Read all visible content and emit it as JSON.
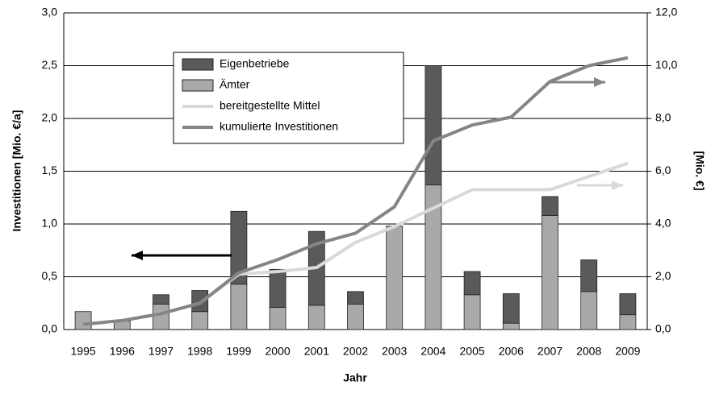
{
  "chart_data": {
    "type": "bar",
    "x_label": "Jahr",
    "y_label": "Investitionen [Mio. €/a]",
    "y2_label": "[Mio. €]",
    "categories": [
      "1995",
      "1996",
      "1997",
      "1998",
      "1999",
      "2000",
      "2001",
      "2002",
      "2003",
      "2004",
      "2005",
      "2006",
      "2007",
      "2008",
      "2009"
    ],
    "series": [
      {
        "name": "Eigenbetriebe",
        "color": "#5a5a5a",
        "kind": "bar",
        "values": [
          0,
          0.01,
          0.09,
          0.2,
          0.69,
          0.36,
          0.7,
          0.12,
          0,
          1.13,
          0.22,
          0.28,
          0.18,
          0.3,
          0.2
        ]
      },
      {
        "name": "Ämter",
        "color": "#a9a9a9",
        "kind": "bar",
        "values": [
          0.17,
          0.08,
          0.24,
          0.17,
          0.43,
          0.21,
          0.23,
          0.24,
          0.98,
          1.37,
          0.33,
          0.06,
          1.08,
          0.36,
          0.14
        ]
      },
      {
        "name": "bereitgestellte Mittel",
        "color": "#d9d9d9",
        "kind": "line",
        "axis": "y2",
        "values": [
          0.2,
          0.34,
          0.6,
          1.0,
          2.1,
          2.2,
          2.35,
          3.3,
          3.9,
          4.6,
          5.3,
          5.3,
          5.3,
          5.8,
          6.3
        ]
      },
      {
        "name": "kumulierte Investitionen",
        "color": "#858585",
        "kind": "line",
        "axis": "y2",
        "values": [
          0.2,
          0.34,
          0.6,
          1.0,
          2.15,
          2.65,
          3.25,
          3.65,
          4.65,
          7.15,
          7.75,
          8.05,
          9.4,
          10.0,
          10.3
        ]
      }
    ],
    "ylim": [
      0,
      3
    ],
    "yticks": [
      {
        "value": 0,
        "label": "0,0"
      },
      {
        "value": 0.5,
        "label": "0,5"
      },
      {
        "value": 1,
        "label": "1,0"
      },
      {
        "value": 1.5,
        "label": "1,5"
      },
      {
        "value": 2,
        "label": "2,0"
      },
      {
        "value": 2.5,
        "label": "2,5"
      },
      {
        "value": 3,
        "label": "3,0"
      }
    ],
    "y2lim": [
      0,
      12
    ],
    "y2ticks": [
      {
        "value": 0,
        "label": "0,0"
      },
      {
        "value": 2,
        "label": "2,0"
      },
      {
        "value": 4,
        "label": "4,0"
      },
      {
        "value": 6,
        "label": "6,0"
      },
      {
        "value": 8,
        "label": "8,0"
      },
      {
        "value": 10,
        "label": "10,0"
      },
      {
        "value": 12,
        "label": "12,0"
      }
    ],
    "grid": true
  }
}
